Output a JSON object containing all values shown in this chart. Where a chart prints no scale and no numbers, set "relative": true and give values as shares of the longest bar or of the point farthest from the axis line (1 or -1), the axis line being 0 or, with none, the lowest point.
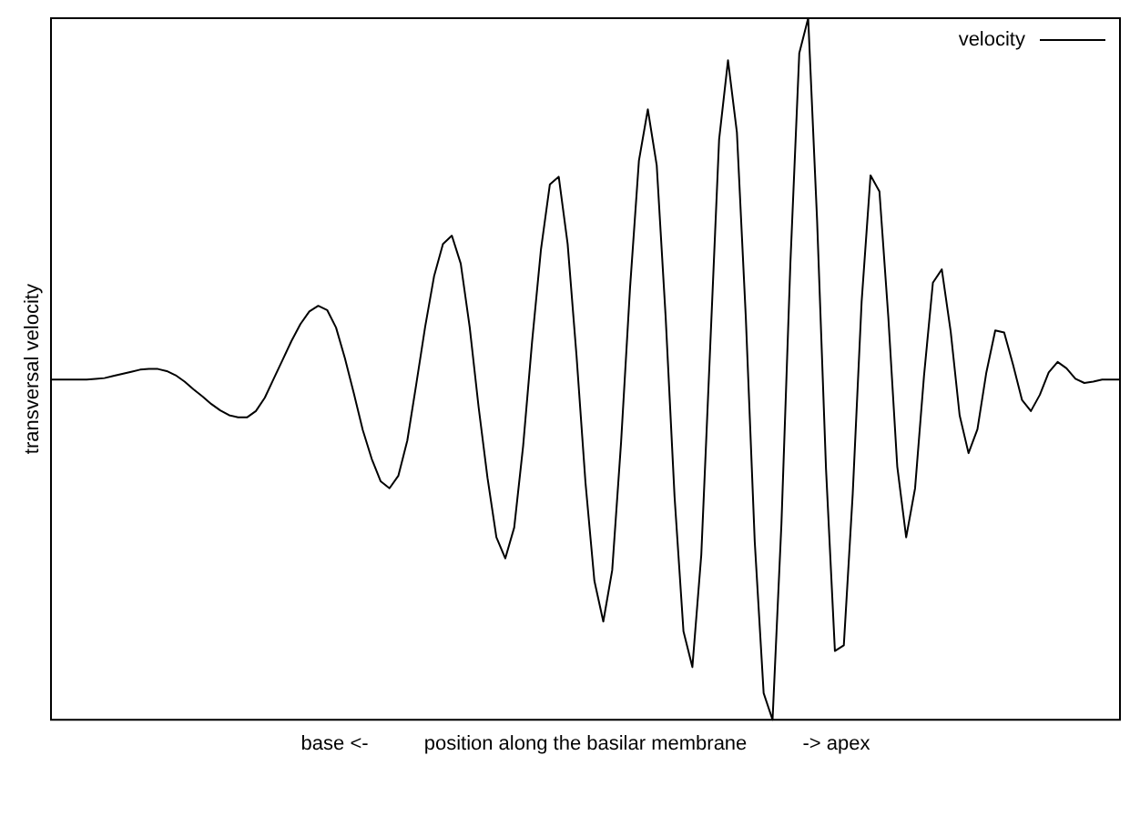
{
  "chart_data": {
    "type": "line",
    "relative": true,
    "xlabel": "base <-          position along the basilar membrane          -> apex",
    "ylabel": "transversal velocity",
    "legend": "top right",
    "marker": "none",
    "line_style": "solid",
    "categories": [
      null,
      null,
      null,
      null,
      null,
      null,
      null,
      null,
      null,
      null,
      null,
      null,
      null,
      null,
      null,
      null,
      null,
      null,
      null,
      null,
      null,
      null,
      null,
      null,
      null,
      null,
      null,
      null,
      null,
      null,
      null,
      null,
      null,
      null,
      null,
      null,
      null,
      null,
      null,
      null,
      null,
      null,
      null,
      null,
      null,
      null,
      null,
      null,
      null,
      null,
      null,
      null,
      null,
      null,
      null,
      null,
      null,
      null,
      null,
      null,
      null,
      null,
      null,
      null,
      null,
      null,
      null,
      null,
      null,
      null,
      null,
      null,
      null,
      null,
      null,
      null,
      null,
      null,
      null,
      null,
      null,
      null,
      null,
      null,
      null,
      null,
      null,
      null,
      null,
      null,
      null,
      null,
      null,
      null,
      null,
      null,
      null,
      null,
      null,
      null,
      null,
      null,
      null,
      null,
      null,
      null,
      null,
      null,
      null,
      null,
      null,
      null,
      null,
      null,
      null,
      null,
      null,
      null,
      null,
      null,
      null
    ],
    "series": [
      {
        "name": "velocity",
        "color": "#000000",
        "values": [
          0.485,
          0.485,
          0.485,
          0.485,
          0.485,
          0.486,
          0.487,
          0.49,
          0.493,
          0.496,
          0.499,
          0.5,
          0.5,
          0.497,
          0.491,
          0.482,
          0.471,
          0.461,
          0.45,
          0.441,
          0.434,
          0.431,
          0.431,
          0.44,
          0.459,
          0.486,
          0.513,
          0.54,
          0.564,
          0.582,
          0.59,
          0.584,
          0.559,
          0.515,
          0.465,
          0.413,
          0.372,
          0.34,
          0.33,
          0.348,
          0.398,
          0.478,
          0.56,
          0.632,
          0.678,
          0.69,
          0.65,
          0.56,
          0.446,
          0.345,
          0.26,
          0.23,
          0.274,
          0.39,
          0.538,
          0.67,
          0.763,
          0.774,
          0.678,
          0.518,
          0.338,
          0.198,
          0.14,
          0.213,
          0.396,
          0.615,
          0.797,
          0.87,
          0.79,
          0.574,
          0.318,
          0.126,
          0.075,
          0.235,
          0.531,
          0.827,
          0.94,
          0.837,
          0.573,
          0.254,
          0.038,
          0,
          0.28,
          0.65,
          0.95,
          1,
          0.712,
          0.358,
          0.098,
          0.106,
          0.322,
          0.596,
          0.776,
          0.753,
          0.573,
          0.361,
          0.26,
          0.33,
          0.49,
          0.623,
          0.642,
          0.553,
          0.434,
          0.38,
          0.414,
          0.495,
          0.555,
          0.552,
          0.506,
          0.456,
          0.44,
          0.463,
          0.495,
          0.51,
          0.501,
          0.486,
          0.48,
          0.482,
          0.485,
          0.485,
          0.485
        ]
      }
    ]
  }
}
